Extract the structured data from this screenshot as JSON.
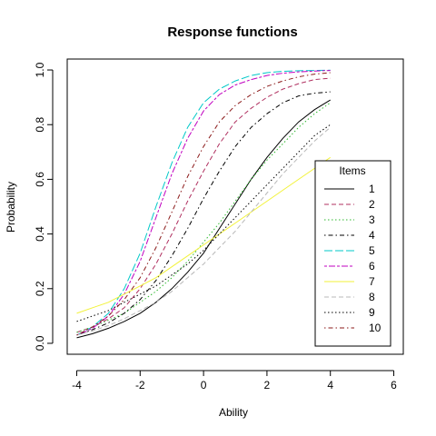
{
  "chart_data": {
    "type": "line",
    "title": "Response functions",
    "xlabel": "Ability",
    "ylabel": "Probability",
    "xlim": [
      -4.3,
      6.3
    ],
    "ylim": [
      -0.04,
      1.04
    ],
    "xticks": [
      -4,
      -2,
      0,
      2,
      4,
      6
    ],
    "xtick_labels": [
      "-4",
      "-2",
      "0",
      "2",
      "4",
      "6"
    ],
    "yticks": [
      0.0,
      0.2,
      0.4,
      0.6,
      0.8,
      1.0
    ],
    "ytick_labels": [
      "0.0",
      "0.2",
      "0.4",
      "0.6",
      "0.8",
      "1.0"
    ],
    "grid": false,
    "legend": {
      "title": "Items",
      "placement": "bottom-right"
    },
    "x": [
      -4,
      -3.5,
      -3,
      -2.5,
      -2,
      -1.5,
      -1,
      -0.5,
      0,
      0.5,
      1,
      1.5,
      2,
      2.5,
      3,
      3.5,
      4
    ],
    "series": [
      {
        "name": "1",
        "color": "#000000",
        "dash": "solid",
        "values": [
          0.02,
          0.035,
          0.055,
          0.08,
          0.11,
          0.15,
          0.2,
          0.26,
          0.33,
          0.42,
          0.51,
          0.6,
          0.68,
          0.75,
          0.81,
          0.855,
          0.89
        ]
      },
      {
        "name": "2",
        "color": "#b03060",
        "dash": "dashed",
        "values": [
          0.04,
          0.06,
          0.09,
          0.13,
          0.2,
          0.29,
          0.4,
          0.52,
          0.63,
          0.73,
          0.81,
          0.86,
          0.9,
          0.93,
          0.95,
          0.965,
          0.97
        ]
      },
      {
        "name": "3",
        "color": "#2eb82e",
        "dash": "dotted",
        "values": [
          0.04,
          0.06,
          0.085,
          0.11,
          0.15,
          0.19,
          0.24,
          0.3,
          0.37,
          0.44,
          0.52,
          0.6,
          0.67,
          0.73,
          0.79,
          0.84,
          0.88
        ]
      },
      {
        "name": "4",
        "color": "#000000",
        "dash": "dotdash",
        "values": [
          0.03,
          0.05,
          0.075,
          0.11,
          0.16,
          0.23,
          0.32,
          0.42,
          0.53,
          0.63,
          0.72,
          0.79,
          0.84,
          0.88,
          0.905,
          0.915,
          0.92
        ]
      },
      {
        "name": "5",
        "color": "#00c8c8",
        "dash": "longdash",
        "values": [
          0.03,
          0.06,
          0.11,
          0.2,
          0.33,
          0.5,
          0.66,
          0.79,
          0.88,
          0.93,
          0.96,
          0.98,
          0.99,
          0.995,
          0.997,
          0.998,
          0.999
        ]
      },
      {
        "name": "6",
        "color": "#c000c0",
        "dash": "twodash",
        "values": [
          0.03,
          0.055,
          0.1,
          0.18,
          0.3,
          0.46,
          0.62,
          0.75,
          0.85,
          0.91,
          0.945,
          0.965,
          0.98,
          0.988,
          0.993,
          0.996,
          0.998
        ]
      },
      {
        "name": "7",
        "color": "#f2f23a",
        "dash": "solid",
        "values": [
          0.11,
          0.13,
          0.15,
          0.18,
          0.21,
          0.24,
          0.28,
          0.32,
          0.36,
          0.4,
          0.44,
          0.48,
          0.52,
          0.56,
          0.6,
          0.64,
          0.68
        ]
      },
      {
        "name": "8",
        "color": "#b8b8b8",
        "dash": "dashed",
        "values": [
          0.03,
          0.045,
          0.065,
          0.09,
          0.12,
          0.15,
          0.19,
          0.24,
          0.29,
          0.35,
          0.41,
          0.48,
          0.55,
          0.62,
          0.68,
          0.74,
          0.79
        ]
      },
      {
        "name": "9",
        "color": "#000000",
        "dash": "dotted",
        "values": [
          0.08,
          0.1,
          0.12,
          0.15,
          0.18,
          0.21,
          0.25,
          0.29,
          0.34,
          0.4,
          0.46,
          0.52,
          0.58,
          0.64,
          0.7,
          0.76,
          0.8
        ]
      },
      {
        "name": "10",
        "color": "#8b1a1a",
        "dash": "dotdash",
        "values": [
          0.03,
          0.06,
          0.1,
          0.16,
          0.24,
          0.35,
          0.48,
          0.61,
          0.72,
          0.81,
          0.87,
          0.91,
          0.94,
          0.96,
          0.975,
          0.985,
          0.99
        ]
      }
    ]
  }
}
